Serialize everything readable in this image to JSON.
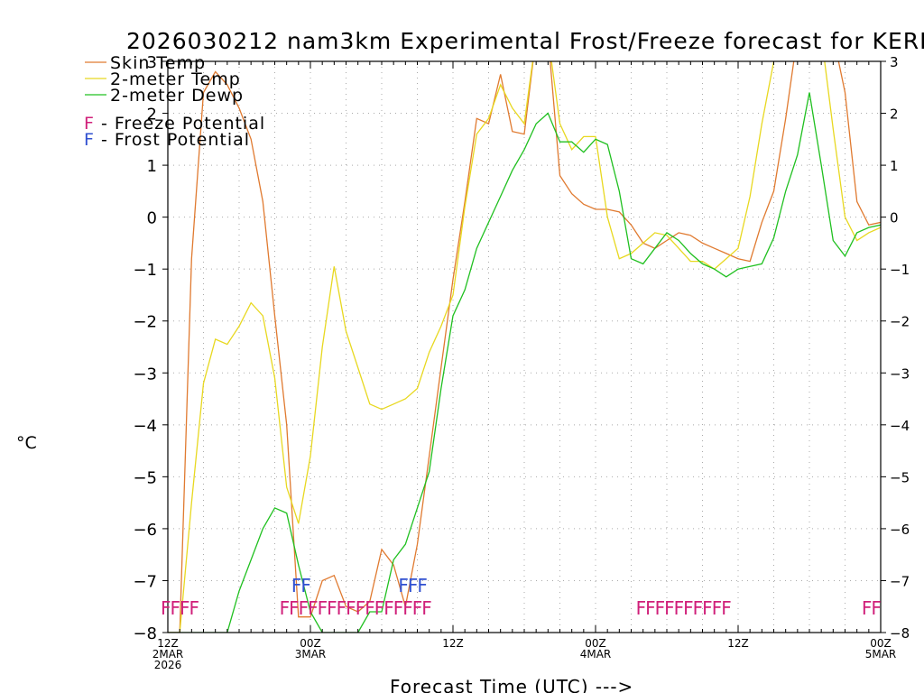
{
  "chart_data": {
    "type": "line",
    "title": "2026030212 nam3km Experimental Frost/Freeze forecast for KERI",
    "ylabel": "°C",
    "xlabel": "Forecast Time (UTC) --->",
    "ylim": [
      -8,
      3
    ],
    "xlim": [
      0,
      60
    ],
    "y_ticks": [
      "-8",
      "-7",
      "-6",
      "-5",
      "-4",
      "-3",
      "-2",
      "-1",
      "0",
      "1",
      "2",
      "3"
    ],
    "x_ticks": [
      {
        "hour": 0,
        "lines": [
          "12Z",
          "2MAR",
          "2026"
        ]
      },
      {
        "hour": 12,
        "lines": [
          "00Z",
          "3MAR"
        ]
      },
      {
        "hour": 24,
        "lines": [
          "12Z"
        ]
      },
      {
        "hour": 36,
        "lines": [
          "00Z",
          "4MAR"
        ]
      },
      {
        "hour": 48,
        "lines": [
          "12Z"
        ]
      },
      {
        "hour": 60,
        "lines": [
          "00Z",
          "5MAR"
        ]
      }
    ],
    "legend": [
      {
        "label": "Skin Temp",
        "color": "#e07a30"
      },
      {
        "label": "2-meter Temp",
        "color": "#e8d820"
      },
      {
        "label": "2-meter Dewp",
        "color": "#20c020"
      }
    ],
    "potential_legend": [
      {
        "symbol": "F",
        "text": " - Freeze Potential",
        "color": "#d0207a"
      },
      {
        "symbol": "F",
        "text": " - Frost Potential",
        "color": "#3050d0"
      }
    ],
    "x": [
      0,
      1,
      2,
      3,
      4,
      5,
      6,
      7,
      8,
      9,
      10,
      11,
      12,
      13,
      14,
      15,
      16,
      17,
      18,
      19,
      20,
      21,
      22,
      23,
      24,
      25,
      26,
      27,
      28,
      29,
      30,
      31,
      32,
      33,
      34,
      35,
      36,
      37,
      38,
      39,
      40,
      41,
      42,
      43,
      44,
      45,
      46,
      47,
      48,
      49,
      50,
      51,
      52,
      53,
      54,
      55,
      56,
      57,
      58,
      59,
      60
    ],
    "series": [
      {
        "name": "Skin Temp",
        "color": "#e07a30",
        "values": [
          -8.0,
          -8.0,
          -0.8,
          2.4,
          2.8,
          2.55,
          2.1,
          1.5,
          0.3,
          -1.9,
          -4.0,
          -7.7,
          -7.7,
          -7.0,
          -6.9,
          -7.5,
          -7.6,
          -7.4,
          -6.4,
          -6.7,
          -7.5,
          -6.3,
          -4.6,
          -2.9,
          -1.2,
          0.3,
          1.9,
          1.8,
          2.75,
          1.65,
          1.6,
          3.5,
          3.5,
          0.8,
          0.45,
          0.25,
          0.15,
          0.15,
          0.1,
          -0.15,
          -0.5,
          -0.6,
          -0.45,
          -0.3,
          -0.35,
          -0.5,
          -0.6,
          -0.7,
          -0.8,
          -0.85,
          -0.1,
          0.5,
          1.9,
          3.5,
          3.5,
          3.5,
          3.5,
          2.4,
          0.3,
          -0.15,
          -0.1
        ]
      },
      {
        "name": "2-meter Temp",
        "color": "#e8d820",
        "values": [
          -8.0,
          -8.0,
          -5.5,
          -3.2,
          -2.35,
          -2.45,
          -2.1,
          -1.65,
          -1.9,
          -3.1,
          -5.2,
          -5.9,
          -4.6,
          -2.5,
          -0.95,
          -2.2,
          -2.9,
          -3.6,
          -3.7,
          -3.6,
          -3.5,
          -3.3,
          -2.6,
          -2.1,
          -1.5,
          0.2,
          1.6,
          1.9,
          2.55,
          2.1,
          1.8,
          3.5,
          3.5,
          1.8,
          1.3,
          1.55,
          1.55,
          0.0,
          -0.8,
          -0.7,
          -0.5,
          -0.3,
          -0.35,
          -0.6,
          -0.85,
          -0.85,
          -1.0,
          -0.8,
          -0.6,
          0.4,
          1.8,
          3.0,
          3.5,
          3.5,
          3.5,
          3.5,
          1.7,
          0.0,
          -0.45,
          -0.3,
          -0.2
        ]
      },
      {
        "name": "2-meter Dewp",
        "color": "#20c020",
        "values": [
          -8.0,
          -8.0,
          -8.0,
          -8.0,
          -8.0,
          -8.0,
          -7.2,
          -6.6,
          -6.0,
          -5.6,
          -5.7,
          -6.7,
          -7.6,
          -8.0,
          -8.0,
          -8.0,
          -8.0,
          -7.6,
          -7.6,
          -6.6,
          -6.3,
          -5.6,
          -4.9,
          -3.3,
          -1.9,
          -1.4,
          -0.6,
          -0.1,
          0.4,
          0.9,
          1.3,
          1.8,
          2.0,
          1.45,
          1.45,
          1.25,
          1.5,
          1.4,
          0.5,
          -0.8,
          -0.9,
          -0.6,
          -0.3,
          -0.45,
          -0.7,
          -0.9,
          -1.0,
          -1.15,
          -1.0,
          -0.95,
          -0.9,
          -0.4,
          0.5,
          1.2,
          2.4,
          1.0,
          -0.45,
          -0.75,
          -0.3,
          -0.2,
          -0.15
        ]
      }
    ],
    "freeze_flags": [
      {
        "text": "FFFF",
        "start_hour": 0
      },
      {
        "text": "FFFFFFFFFFFFFFFF",
        "start_hour": 10
      },
      {
        "text": "FFFFFFFFFF",
        "start_hour": 40
      },
      {
        "text": "FF",
        "start_hour": 59
      }
    ],
    "frost_flags": [
      {
        "text": "FF",
        "start_hour": 11
      },
      {
        "text": "FFF",
        "start_hour": 20
      }
    ]
  }
}
